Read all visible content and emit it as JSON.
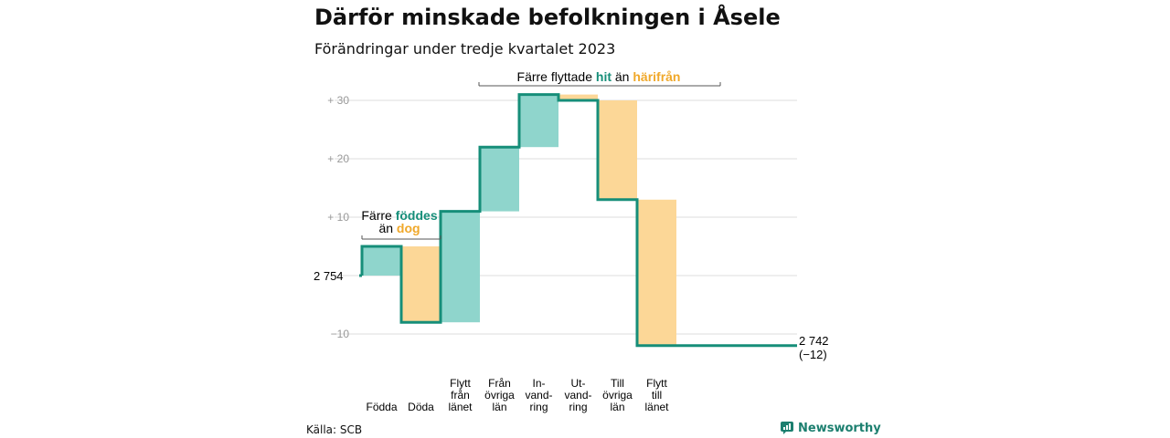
{
  "title": "Därför minskade befolkningen i Åsele",
  "subtitle": "Förändringar under tredje kvartalet 2023",
  "source": "Källa: SCB",
  "brand": "Newsworthy",
  "colors": {
    "positive_fill": "#8fd5cc",
    "negative_fill": "#fcd797",
    "line": "#168e79",
    "teal_text": "#168e79",
    "orange_text": "#f0a82a",
    "grid": "#dedede",
    "tick": "#999999"
  },
  "annotations": {
    "births_part1": "Färre ",
    "births_part2": "föddes",
    "births_part3": "än ",
    "births_part4": "dog",
    "moves_part1": "Färre flyttade ",
    "moves_part2": "hit",
    "moves_part3": " än ",
    "moves_part4": "härifrån"
  },
  "chart_data": {
    "type": "waterfall",
    "start": {
      "value": 2754,
      "label": "2 754"
    },
    "end": {
      "value": 2742,
      "label": "2 742",
      "change_label": "(−12)"
    },
    "ylim": [
      -15,
      34
    ],
    "yticks": [
      {
        "value": -10,
        "label": "−10"
      },
      {
        "value": 10,
        "label": "+ 10"
      },
      {
        "value": 20,
        "label": "+ 20"
      },
      {
        "value": 30,
        "label": "+ 30"
      }
    ],
    "steps": [
      {
        "label_lines": [
          "Födda"
        ],
        "delta": 5
      },
      {
        "label_lines": [
          "Döda"
        ],
        "delta": -13
      },
      {
        "label_lines": [
          "Flytt",
          "från",
          "länet"
        ],
        "delta": 19
      },
      {
        "label_lines": [
          "Från",
          "övriga",
          "län"
        ],
        "delta": 11
      },
      {
        "label_lines": [
          "In-",
          "vand-",
          "ring"
        ],
        "delta": 9
      },
      {
        "label_lines": [
          "Ut-",
          "vand-",
          "ring"
        ],
        "delta": -1
      },
      {
        "label_lines": [
          "Till",
          "övriga",
          "län"
        ],
        "delta": -17
      },
      {
        "label_lines": [
          "Flytt",
          "till",
          "länet"
        ],
        "delta": -25
      }
    ]
  }
}
